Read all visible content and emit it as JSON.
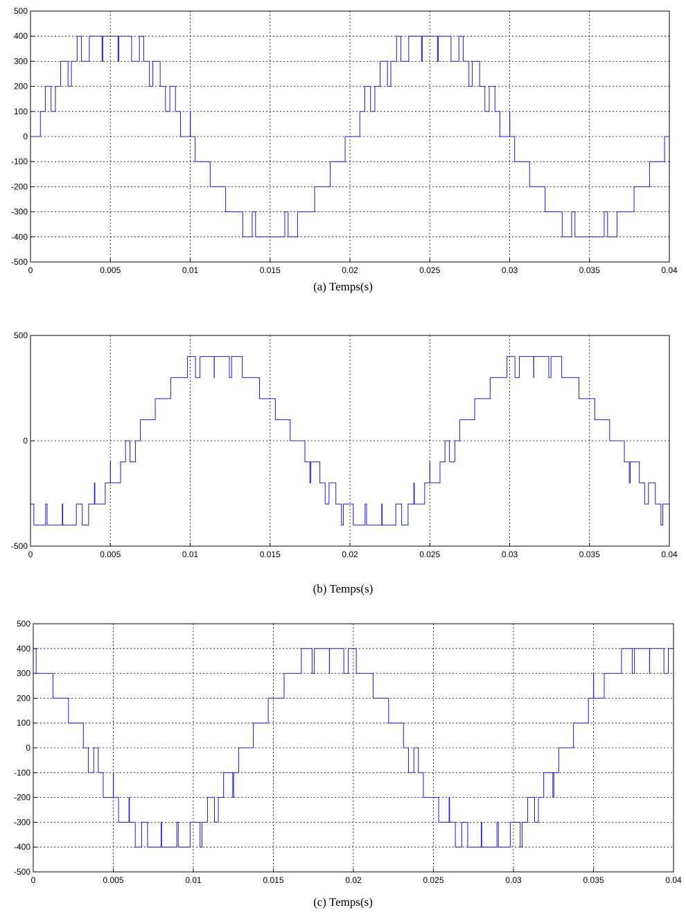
{
  "chart_data": [
    {
      "type": "line",
      "caption": "(a) Temps(s)",
      "xlim": [
        0,
        0.04
      ],
      "ylim": [
        -500,
        500
      ],
      "xticks": [
        "0",
        "0.005",
        "0.01",
        "0.015",
        "0.02",
        "0.025",
        "0.03",
        "0.035",
        "0.04"
      ],
      "yticks": [
        "-500",
        "-400",
        "-300",
        "-200",
        "-100",
        "0",
        "100",
        "200",
        "300",
        "400",
        "500"
      ],
      "grid": true,
      "series": [
        {
          "color": "#1a1ad6",
          "waveform": "multilevel stepped PWM, levels ±100 V steps, peak 400",
          "fundamental_hz": 50,
          "phase_deg": 0,
          "amplitude": 400,
          "levels": 4,
          "carrier_hz": 1000
        }
      ]
    },
    {
      "type": "line",
      "caption": "(b) Temps(s)",
      "xlim": [
        0,
        0.04
      ],
      "ylim": [
        -500,
        500
      ],
      "xticks": [
        "0",
        "0.005",
        "0.01",
        "0.015",
        "0.02",
        "0.025",
        "0.03",
        "0.035",
        "0.04"
      ],
      "yticks": [
        "-500",
        "0",
        "500"
      ],
      "grid": true,
      "series": [
        {
          "color": "#1a1ad6",
          "waveform": "multilevel stepped PWM, levels ±100 V steps, peak 400",
          "fundamental_hz": 50,
          "phase_deg": -120,
          "amplitude": 400,
          "levels": 4,
          "carrier_hz": 1000
        }
      ]
    },
    {
      "type": "line",
      "caption": "(c) Temps(s)",
      "xlim": [
        0,
        0.04
      ],
      "ylim": [
        -500,
        500
      ],
      "xticks": [
        "0",
        "0.005",
        "0.01",
        "0.015",
        "0.02",
        "0.025",
        "0.03",
        "0.035",
        "0.04"
      ],
      "yticks": [
        "-500",
        "-400",
        "-300",
        "-200",
        "-100",
        "0",
        "100",
        "200",
        "300",
        "400",
        "500"
      ],
      "grid": true,
      "series": [
        {
          "color": "#1a1ad6",
          "waveform": "multilevel stepped PWM, levels ±100 V steps, peak 400",
          "fundamental_hz": 50,
          "phase_deg": 120,
          "amplitude": 400,
          "levels": 4,
          "carrier_hz": 1000
        }
      ]
    }
  ]
}
